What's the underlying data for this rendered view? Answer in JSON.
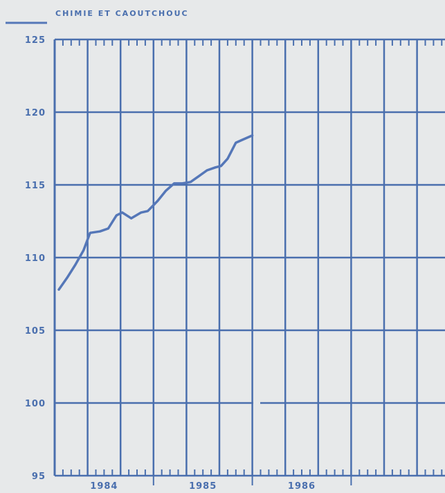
{
  "chart_data": {
    "type": "line",
    "title": "",
    "xlabel": "",
    "ylabel": "",
    "ylim": [
      95,
      125
    ],
    "xlim": [
      0,
      36
    ],
    "grid": true,
    "legend_position": "top-left",
    "colors": {
      "line": "#5577b8",
      "grid": "#4a6fae",
      "text": "#4a6fae",
      "background": "#e7e9ea"
    },
    "y_ticks": [
      125,
      120,
      115,
      110,
      105,
      100,
      95
    ],
    "x_tick_labels": [
      {
        "label": "1984",
        "pos": 6
      },
      {
        "label": "1985",
        "pos": 18
      },
      {
        "label": "1986",
        "pos": 30
      }
    ],
    "series": [
      {
        "name": "CHIMIE ET CAOUTCHOUC",
        "points": [
          [
            0.5,
            107.8
          ],
          [
            1.5,
            108.6
          ],
          [
            2.5,
            109.5
          ],
          [
            3.5,
            110.5
          ],
          [
            4.3,
            111.7
          ],
          [
            5.5,
            111.8
          ],
          [
            6.5,
            112.0
          ],
          [
            7.5,
            112.9
          ],
          [
            8.2,
            113.1
          ],
          [
            9.3,
            112.7
          ],
          [
            10.5,
            113.1
          ],
          [
            11.3,
            113.2
          ],
          [
            12.5,
            113.9
          ],
          [
            13.5,
            114.6
          ],
          [
            14.5,
            115.1
          ],
          [
            15.5,
            115.1
          ],
          [
            16.5,
            115.2
          ],
          [
            17.5,
            115.6
          ],
          [
            18.5,
            116.0
          ],
          [
            19.5,
            116.2
          ],
          [
            20.2,
            116.3
          ],
          [
            21.0,
            116.8
          ],
          [
            22.0,
            117.9
          ],
          [
            22.8,
            118.1
          ],
          [
            24.0,
            118.4
          ]
        ]
      }
    ]
  }
}
